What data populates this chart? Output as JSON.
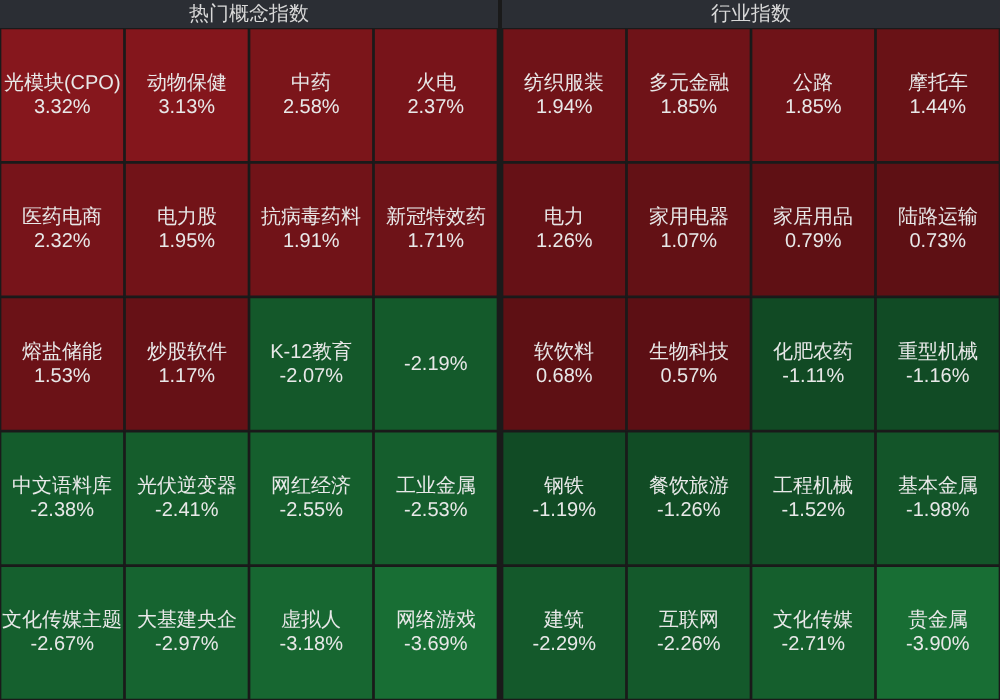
{
  "chart_data": [
    {
      "type": "other",
      "title": "热门概念指数",
      "categories": [
        "光模块(CPO)",
        "动物保健",
        "中药",
        "火电",
        "医药电商",
        "电力股",
        "抗病毒药料",
        "新冠特效药",
        "熔盐储能",
        "炒股软件",
        "K-12教育",
        null,
        "中文语料库",
        "光伏逆变器",
        "网红经济",
        "工业金属",
        "文化传媒主题",
        "大基建央企",
        "虚拟人",
        "网络游戏"
      ],
      "values": [
        3.32,
        3.13,
        2.58,
        2.37,
        2.32,
        1.95,
        1.91,
        1.71,
        1.53,
        1.17,
        -2.07,
        -2.19,
        -2.38,
        -2.41,
        -2.55,
        -2.53,
        -2.67,
        -2.97,
        -3.18,
        -3.69
      ],
      "value_labels": [
        "3.32%",
        "3.13%",
        "2.58%",
        "2.37%",
        "2.32%",
        "1.95%",
        "1.91%",
        "1.71%",
        "1.53%",
        "1.17%",
        "-2.07%",
        "-2.19%",
        "-2.38%",
        "-2.41%",
        "-2.55%",
        "-2.53%",
        "-2.67%",
        "-2.97%",
        "-3.18%",
        "-3.69%"
      ]
    },
    {
      "type": "other",
      "title": "行业指数",
      "categories": [
        "纺织服装",
        "多元金融",
        "公路",
        "摩托车",
        "电力",
        "家用电器",
        "家居用品",
        "陆路运输",
        "软饮料",
        "生物科技",
        "化肥农药",
        "重型机械",
        "钢铁",
        "餐饮旅游",
        "工程机械",
        "基本金属",
        "建筑",
        "互联网",
        "文化传媒",
        "贵金属"
      ],
      "values": [
        1.94,
        1.85,
        1.85,
        1.44,
        1.26,
        1.07,
        0.79,
        0.73,
        0.68,
        0.57,
        -1.11,
        -1.16,
        -1.19,
        -1.26,
        -1.52,
        -1.98,
        -2.29,
        -2.26,
        -2.71,
        -3.9
      ],
      "value_labels": [
        "1.94%",
        "1.85%",
        "1.85%",
        "1.44%",
        "1.26%",
        "1.07%",
        "0.79%",
        "0.73%",
        "0.68%",
        "0.57%",
        "-1.11%",
        "-1.16%",
        "-1.19%",
        "-1.26%",
        "-1.52%",
        "-1.98%",
        "-2.29%",
        "-2.26%",
        "-2.71%",
        "-3.90%"
      ]
    }
  ]
}
